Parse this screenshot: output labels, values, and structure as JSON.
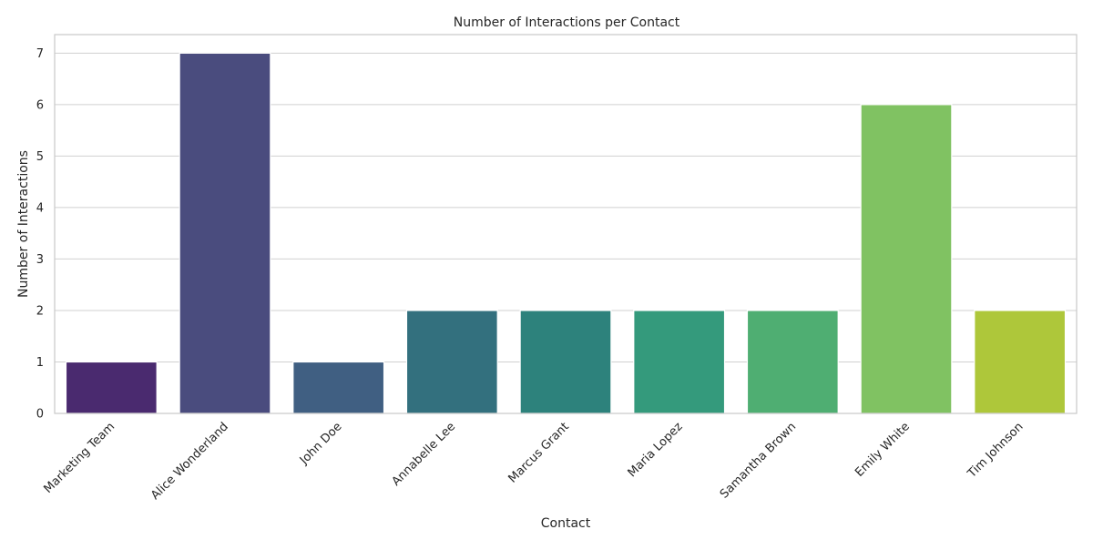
{
  "chart_data": {
    "type": "bar",
    "title": "Number of Interactions per Contact",
    "xlabel": "Contact",
    "ylabel": "Number of Interactions",
    "categories": [
      "Marketing Team",
      "Alice Wonderland",
      "John Doe",
      "Annabelle Lee",
      "Marcus Grant",
      "Maria Lopez",
      "Samantha Brown",
      "Emily White",
      "Tim Johnson"
    ],
    "values": [
      1,
      7,
      1,
      2,
      2,
      2,
      2,
      6,
      2
    ],
    "colors": [
      "#4a2a6f",
      "#4a4c7e",
      "#405f82",
      "#33707e",
      "#2d827c",
      "#349a7c",
      "#4fae72",
      "#80c262",
      "#aec73a"
    ],
    "ylim": [
      0,
      7.36
    ],
    "yticks": [
      0,
      1,
      2,
      3,
      4,
      5,
      6,
      7
    ],
    "grid": "horizontal",
    "legend": "none"
  }
}
